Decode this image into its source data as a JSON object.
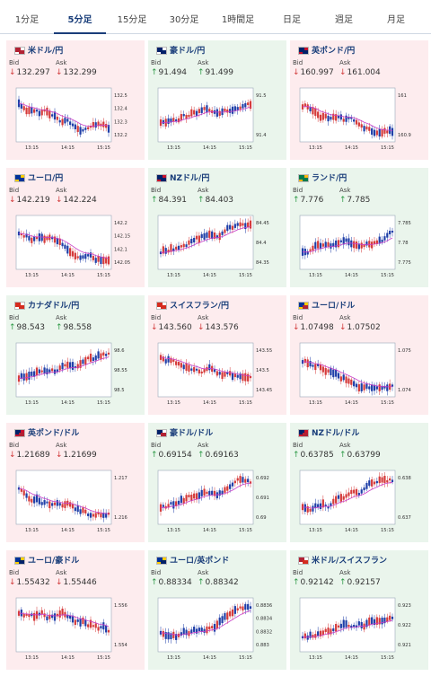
{
  "tabs": [
    {
      "label": "1分足",
      "active": false
    },
    {
      "label": "5分足",
      "active": true
    },
    {
      "label": "15分足",
      "active": false
    },
    {
      "label": "30分足",
      "active": false
    },
    {
      "label": "1時間足",
      "active": false
    },
    {
      "label": "日足",
      "active": false
    },
    {
      "label": "週足",
      "active": false
    },
    {
      "label": "月足",
      "active": false
    }
  ],
  "colors": {
    "down_bg": "#fdecee",
    "up_bg": "#eaf5ec",
    "down_arrow": "#d23b3b",
    "up_arrow": "#2e9a47",
    "candle_up": "#d53a3a",
    "candle_down": "#1f3fa8",
    "ma_line": "#c93ec9",
    "title": "#1a3e7a"
  },
  "labels": {
    "bid": "Bid",
    "ask": "Ask"
  },
  "cards": [
    {
      "name": "米ドル/円",
      "flag": "us-flag",
      "trend": "down",
      "bid": "132.297",
      "ask": "132.299",
      "x_ticks": [
        "13:15",
        "14:15",
        "15:15"
      ],
      "y_ticks": [
        "132.5",
        "132.4",
        "132.3",
        "132.2"
      ]
    },
    {
      "name": "豪ドル/円",
      "flag": "au-flag",
      "trend": "up",
      "bid": "91.494",
      "ask": "91.499",
      "x_ticks": [
        "13:15",
        "14:15",
        "15:15"
      ],
      "y_ticks": [
        "91.5",
        "91.4"
      ]
    },
    {
      "name": "英ポンド/円",
      "flag": "gb-flag",
      "trend": "down",
      "bid": "160.997",
      "ask": "161.004",
      "x_ticks": [
        "13:15",
        "14:15",
        "15:15"
      ],
      "y_ticks": [
        "161",
        "160.9"
      ]
    },
    {
      "name": "ユーロ/円",
      "flag": "eu-flag",
      "trend": "down",
      "bid": "142.219",
      "ask": "142.224",
      "x_ticks": [
        "13:15",
        "14:15",
        "15:15"
      ],
      "y_ticks": [
        "142.2",
        "142.15",
        "142.1",
        "142.05"
      ]
    },
    {
      "name": "NZドル/円",
      "flag": "nz-flag",
      "trend": "up",
      "bid": "84.391",
      "ask": "84.403",
      "x_ticks": [
        "13:15",
        "14:15",
        "15:15"
      ],
      "y_ticks": [
        "84.45",
        "84.4",
        "84.35"
      ]
    },
    {
      "name": "ランド/円",
      "flag": "za-flag",
      "trend": "up",
      "bid": "7.776",
      "ask": "7.785",
      "x_ticks": [
        "13:15",
        "14:15",
        "15:15"
      ],
      "y_ticks": [
        "7.785",
        "7.78",
        "7.775"
      ]
    },
    {
      "name": "カナダドル/円",
      "flag": "ca-flag",
      "trend": "up",
      "bid": "98.543",
      "ask": "98.558",
      "x_ticks": [
        "13:15",
        "14:15",
        "15:15"
      ],
      "y_ticks": [
        "98.6",
        "98.55",
        "98.5"
      ]
    },
    {
      "name": "スイスフラン/円",
      "flag": "ch-flag",
      "trend": "down",
      "bid": "143.560",
      "ask": "143.576",
      "x_ticks": [
        "13:15",
        "14:15",
        "15:15"
      ],
      "y_ticks": [
        "143.55",
        "143.5",
        "143.45"
      ]
    },
    {
      "name": "ユーロ/ドル",
      "flag": "eu-us-flag",
      "trend": "down",
      "bid": "1.07498",
      "ask": "1.07502",
      "x_ticks": [
        "13:15",
        "14:15",
        "15:15"
      ],
      "y_ticks": [
        "1.075",
        "1.074"
      ]
    },
    {
      "name": "英ポンド/ドル",
      "flag": "gb-us-flag",
      "trend": "down",
      "bid": "1.21689",
      "ask": "1.21699",
      "x_ticks": [
        "13:15",
        "14:15",
        "15:15"
      ],
      "y_ticks": [
        "1.217",
        "1.216"
      ]
    },
    {
      "name": "豪ドル/ドル",
      "flag": "au-us-flag",
      "trend": "up",
      "bid": "0.69154",
      "ask": "0.69163",
      "x_ticks": [
        "13:15",
        "14:15",
        "15:15"
      ],
      "y_ticks": [
        "0.692",
        "0.691",
        "0.69"
      ]
    },
    {
      "name": "NZドル/ドル",
      "flag": "nz-us-flag",
      "trend": "up",
      "bid": "0.63785",
      "ask": "0.63799",
      "x_ticks": [
        "13:15",
        "14:15",
        "15:15"
      ],
      "y_ticks": [
        "0.638",
        "0.637"
      ]
    },
    {
      "name": "ユーロ/豪ドル",
      "flag": "eu-au-flag",
      "trend": "down",
      "bid": "1.55432",
      "ask": "1.55446",
      "x_ticks": [
        "13:15",
        "14:15",
        "15:15"
      ],
      "y_ticks": [
        "1.556",
        "1.554"
      ]
    },
    {
      "name": "ユーロ/英ポンド",
      "flag": "eu-gb-flag",
      "trend": "up",
      "bid": "0.88334",
      "ask": "0.88342",
      "x_ticks": [
        "13:15",
        "14:15",
        "15:15"
      ],
      "y_ticks": [
        "0.8836",
        "0.8834",
        "0.8832",
        "0.883"
      ]
    },
    {
      "name": "米ドル/スイスフラン",
      "flag": "us-ch-flag",
      "trend": "up",
      "bid": "0.92142",
      "ask": "0.92157",
      "x_ticks": [
        "13:15",
        "14:15",
        "15:15"
      ],
      "y_ticks": [
        "0.923",
        "0.922",
        "0.921"
      ]
    }
  ],
  "chart_data": [
    {
      "type": "candlestick",
      "pair": "米ドル/円",
      "x_ticks": [
        "13:15",
        "14:15",
        "15:15"
      ],
      "y_ticks": [
        132.5,
        132.4,
        132.3,
        132.2
      ],
      "trend": "down"
    },
    {
      "type": "candlestick",
      "pair": "豪ドル/円",
      "x_ticks": [
        "13:15",
        "14:15",
        "15:15"
      ],
      "y_ticks": [
        91.5,
        91.4
      ],
      "trend": "up"
    },
    {
      "type": "candlestick",
      "pair": "英ポンド/円",
      "x_ticks": [
        "13:15",
        "14:15",
        "15:15"
      ],
      "y_ticks": [
        161,
        160.9
      ],
      "trend": "down"
    },
    {
      "type": "candlestick",
      "pair": "ユーロ/円",
      "x_ticks": [
        "13:15",
        "14:15",
        "15:15"
      ],
      "y_ticks": [
        142.2,
        142.15,
        142.1,
        142.05
      ],
      "trend": "down"
    },
    {
      "type": "candlestick",
      "pair": "NZドル/円",
      "x_ticks": [
        "13:15",
        "14:15",
        "15:15"
      ],
      "y_ticks": [
        84.45,
        84.4,
        84.35
      ],
      "trend": "up"
    },
    {
      "type": "candlestick",
      "pair": "ランド/円",
      "x_ticks": [
        "13:15",
        "14:15",
        "15:15"
      ],
      "y_ticks": [
        7.785,
        7.78,
        7.775
      ],
      "trend": "up"
    },
    {
      "type": "candlestick",
      "pair": "カナダドル/円",
      "x_ticks": [
        "13:15",
        "14:15",
        "15:15"
      ],
      "y_ticks": [
        98.6,
        98.55,
        98.5
      ],
      "trend": "up"
    },
    {
      "type": "candlestick",
      "pair": "スイスフラン/円",
      "x_ticks": [
        "13:15",
        "14:15",
        "15:15"
      ],
      "y_ticks": [
        143.55,
        143.5,
        143.45
      ],
      "trend": "down"
    },
    {
      "type": "candlestick",
      "pair": "ユーロ/ドル",
      "x_ticks": [
        "13:15",
        "14:15",
        "15:15"
      ],
      "y_ticks": [
        1.075,
        1.074
      ],
      "trend": "down"
    },
    {
      "type": "candlestick",
      "pair": "英ポンド/ドル",
      "x_ticks": [
        "13:15",
        "14:15",
        "15:15"
      ],
      "y_ticks": [
        1.217,
        1.216
      ],
      "trend": "down"
    },
    {
      "type": "candlestick",
      "pair": "豪ドル/ドル",
      "x_ticks": [
        "13:15",
        "14:15",
        "15:15"
      ],
      "y_ticks": [
        0.692,
        0.691,
        0.69
      ],
      "trend": "up"
    },
    {
      "type": "candlestick",
      "pair": "NZドル/ドル",
      "x_ticks": [
        "13:15",
        "14:15",
        "15:15"
      ],
      "y_ticks": [
        0.638,
        0.637
      ],
      "trend": "up"
    },
    {
      "type": "candlestick",
      "pair": "ユーロ/豪ドル",
      "x_ticks": [
        "13:15",
        "14:15",
        "15:15"
      ],
      "y_ticks": [
        1.556,
        1.554
      ],
      "trend": "down"
    },
    {
      "type": "candlestick",
      "pair": "ユーロ/英ポンド",
      "x_ticks": [
        "13:15",
        "14:15",
        "15:15"
      ],
      "y_ticks": [
        0.8836,
        0.8834,
        0.8832,
        0.883
      ],
      "trend": "up"
    },
    {
      "type": "candlestick",
      "pair": "米ドル/スイスフラン",
      "x_ticks": [
        "13:15",
        "14:15",
        "15:15"
      ],
      "y_ticks": [
        0.923,
        0.922,
        0.921
      ],
      "trend": "up"
    }
  ]
}
